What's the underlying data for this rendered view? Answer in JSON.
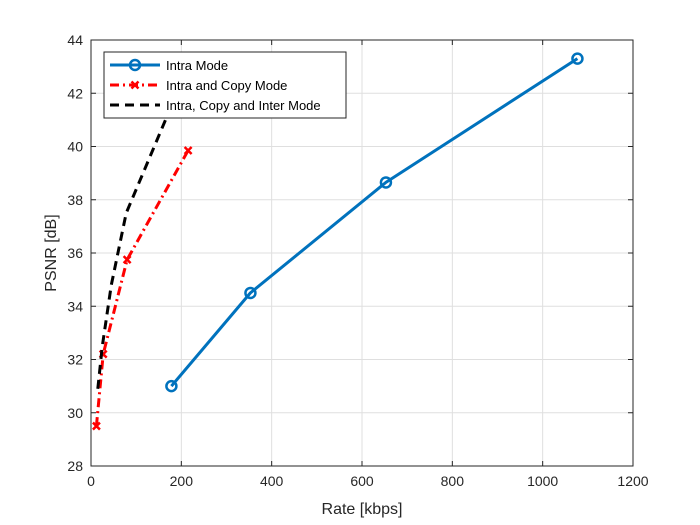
{
  "chart_data": {
    "type": "line",
    "title": "",
    "xlabel": "Rate [kbps]",
    "ylabel": "PSNR [dB]",
    "xlim": [
      0,
      1200
    ],
    "ylim": [
      28,
      44
    ],
    "xticks": [
      0,
      200,
      400,
      600,
      800,
      1000,
      1200
    ],
    "yticks": [
      28,
      30,
      32,
      34,
      36,
      38,
      40,
      42,
      44
    ],
    "xtick_labels": [
      "0",
      "200",
      "400",
      "600",
      "800",
      "1000",
      "1200"
    ],
    "ytick_labels": [
      "28",
      "30",
      "32",
      "34",
      "36",
      "38",
      "40",
      "42",
      "44"
    ],
    "grid": true,
    "legend_position": "top-left",
    "series": [
      {
        "name": "Intra Mode",
        "color": "#0072BD",
        "line_style": "solid",
        "marker": "circle",
        "x": [
          178,
          353,
          653,
          1077
        ],
        "y": [
          31.0,
          34.5,
          38.65,
          43.3
        ]
      },
      {
        "name": "Intra and Copy Mode",
        "color": "#FF0000",
        "line_style": "dash-dot",
        "marker": "x",
        "x": [
          12,
          27,
          80,
          215
        ],
        "y": [
          29.5,
          32.2,
          35.75,
          39.85
        ]
      },
      {
        "name": "Intra, Copy and Inter Mode",
        "color": "#000000",
        "line_style": "dashed",
        "marker": "none",
        "x": [
          15,
          25,
          45,
          78,
          165
        ],
        "y": [
          30.9,
          32.5,
          34.8,
          37.5,
          41.0
        ]
      }
    ]
  }
}
